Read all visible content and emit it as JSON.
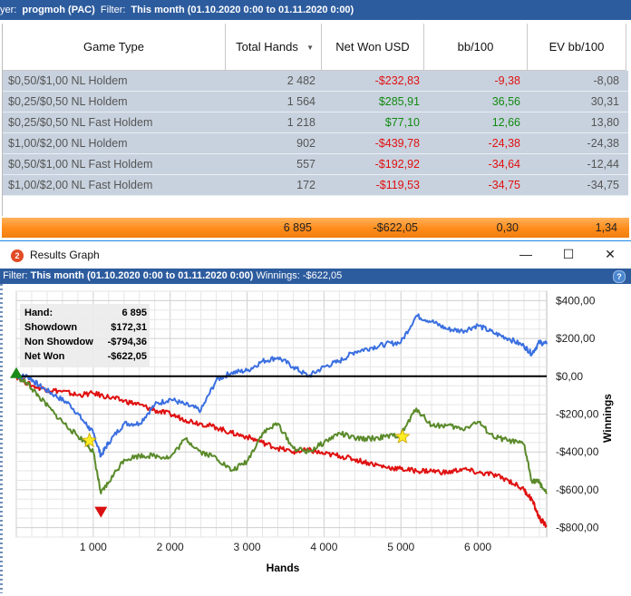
{
  "topbar": {
    "player_label": "yer:",
    "player_value": "progmoh (PAC)",
    "filter_label": "Filter:",
    "filter_value": "This month (01.10.2020 0:00 to 01.11.2020 0:00)"
  },
  "table": {
    "columns": [
      "Game Type",
      "Total Hands",
      "Net Won USD",
      "bb/100",
      "EV bb/100"
    ],
    "rows": [
      {
        "game": "$0,50/$1,00 NL Holdem",
        "hands": "2 482",
        "net": "-$232,83",
        "bb100": "-9,38",
        "ev": "-8,08"
      },
      {
        "game": "$0,25/$0,50 NL Holdem",
        "hands": "1 564",
        "net": "$285,91",
        "bb100": "36,56",
        "ev": "30,31"
      },
      {
        "game": "$0,25/$0,50 NL Fast Holdem",
        "hands": "1 218",
        "net": "$77,10",
        "bb100": "12,66",
        "ev": "13,80"
      },
      {
        "game": "$1,00/$2,00 NL Holdem",
        "hands": "902",
        "net": "-$439,78",
        "bb100": "-24,38",
        "ev": "-24,38"
      },
      {
        "game": "$0,50/$1,00 NL Fast Holdem",
        "hands": "557",
        "net": "-$192,92",
        "bb100": "-34,64",
        "ev": "-12,44"
      },
      {
        "game": "$1,00/$2,00 NL Fast Holdem",
        "hands": "172",
        "net": "-$119,53",
        "bb100": "-34,75",
        "ev": "-34,75"
      }
    ],
    "totals": {
      "hands": "6 895",
      "net": "-$622,05",
      "bb100": "0,30",
      "ev": "1,34"
    }
  },
  "window": {
    "icon_text": "2",
    "title": "Results Graph",
    "minimize": "—",
    "maximize": "☐",
    "close": "✕"
  },
  "filterbar": {
    "label": "Filter:",
    "value": "This month (01.10.2020 0:00 to 01.11.2020 0:00)",
    "winnings": "Winnings: -$622,05",
    "help": "?"
  },
  "stats": {
    "hand_label": "Hand:",
    "hand_value": "6 895",
    "showdown_label": "Showdown",
    "showdown_value": "$172,31",
    "nonshowdown_label": "Non Showdow",
    "nonshowdown_value": "-$794,36",
    "netwon_label": "Net Won",
    "netwon_value": "-$622,05"
  },
  "colors": {
    "showdown": "#3a6fe0",
    "nonshowdown": "#e01010",
    "netwon": "#5a8a2a",
    "zero_line": "#000000",
    "header_bar": "#2d5c9e",
    "totals_bar": "#ff8c1a"
  },
  "chart_data": {
    "type": "line",
    "xlabel": "Hands",
    "ylabel": "Winnings",
    "xlim": [
      0,
      6895
    ],
    "ylim": [
      -850,
      450
    ],
    "x_ticks": [
      1000,
      2000,
      3000,
      4000,
      5000,
      6000
    ],
    "x_tick_labels": [
      "1 000",
      "2 000",
      "3 000",
      "4 000",
      "5 000",
      "6 000"
    ],
    "y_ticks": [
      400,
      200,
      0,
      -200,
      -400,
      -600,
      -800
    ],
    "y_tick_labels": [
      "$400,00",
      "$200,00",
      "$0,00",
      "-$200,00",
      "-$400,00",
      "-$600,00",
      "-$800,00"
    ],
    "grid": true,
    "series": [
      {
        "name": "Showdown",
        "color": "#3a6fe0",
        "x": [
          0,
          150,
          300,
          500,
          700,
          900,
          1000,
          1100,
          1200,
          1400,
          1600,
          1800,
          2000,
          2200,
          2400,
          2600,
          2800,
          3000,
          3200,
          3400,
          3600,
          3800,
          4000,
          4200,
          4400,
          4600,
          4800,
          5000,
          5200,
          5400,
          5600,
          5800,
          6000,
          6200,
          6400,
          6600,
          6700,
          6800,
          6895
        ],
        "y": [
          0,
          0,
          -50,
          -100,
          -150,
          -250,
          -300,
          -420,
          -350,
          -250,
          -250,
          -150,
          -120,
          -150,
          -180,
          -20,
          20,
          30,
          80,
          100,
          50,
          0,
          50,
          80,
          130,
          150,
          170,
          180,
          320,
          290,
          250,
          240,
          270,
          230,
          200,
          160,
          120,
          180,
          170
        ]
      },
      {
        "name": "Non Showdown",
        "color": "#e01010",
        "x": [
          0,
          200,
          400,
          600,
          800,
          1000,
          1200,
          1400,
          1600,
          1800,
          2000,
          2200,
          2400,
          2600,
          2800,
          3000,
          3200,
          3400,
          3600,
          3800,
          4000,
          4200,
          4400,
          4600,
          4800,
          5000,
          5200,
          5400,
          5600,
          5800,
          6000,
          6200,
          6400,
          6600,
          6700,
          6800,
          6895
        ],
        "y": [
          0,
          -50,
          -70,
          -80,
          -100,
          -90,
          -110,
          -130,
          -150,
          -180,
          -200,
          -230,
          -250,
          -270,
          -300,
          -320,
          -350,
          -380,
          -400,
          -390,
          -410,
          -420,
          -440,
          -460,
          -480,
          -490,
          -500,
          -500,
          -510,
          -490,
          -510,
          -520,
          -550,
          -600,
          -650,
          -750,
          -794
        ]
      },
      {
        "name": "Net Won",
        "color": "#5a8a2a",
        "x": [
          0,
          150,
          300,
          500,
          700,
          900,
          1000,
          1100,
          1200,
          1400,
          1600,
          1800,
          2000,
          2200,
          2400,
          2600,
          2800,
          3000,
          3200,
          3400,
          3600,
          3800,
          4000,
          4200,
          4400,
          4600,
          4800,
          5000,
          5200,
          5400,
          5600,
          5800,
          6000,
          6200,
          6400,
          6600,
          6700,
          6800,
          6895
        ],
        "y": [
          0,
          -40,
          -110,
          -200,
          -280,
          -350,
          -400,
          -620,
          -560,
          -440,
          -420,
          -420,
          -430,
          -330,
          -400,
          -430,
          -500,
          -450,
          -300,
          -250,
          -380,
          -400,
          -350,
          -300,
          -330,
          -330,
          -320,
          -310,
          -170,
          -260,
          -260,
          -280,
          -240,
          -320,
          -340,
          -360,
          -550,
          -560,
          -622
        ]
      }
    ],
    "markers": [
      {
        "name": "start",
        "x": 0,
        "y": 0,
        "shape": "triangle-up",
        "color": "#1a8a1a"
      },
      {
        "name": "min",
        "x": 1100,
        "y": -690,
        "shape": "triangle-down",
        "color": "#d81010"
      },
      {
        "name": "star1",
        "x": 950,
        "y": -340,
        "shape": "star",
        "color": "#ffee22"
      },
      {
        "name": "star2",
        "x": 5020,
        "y": -320,
        "shape": "star",
        "color": "#ffee22"
      }
    ]
  }
}
